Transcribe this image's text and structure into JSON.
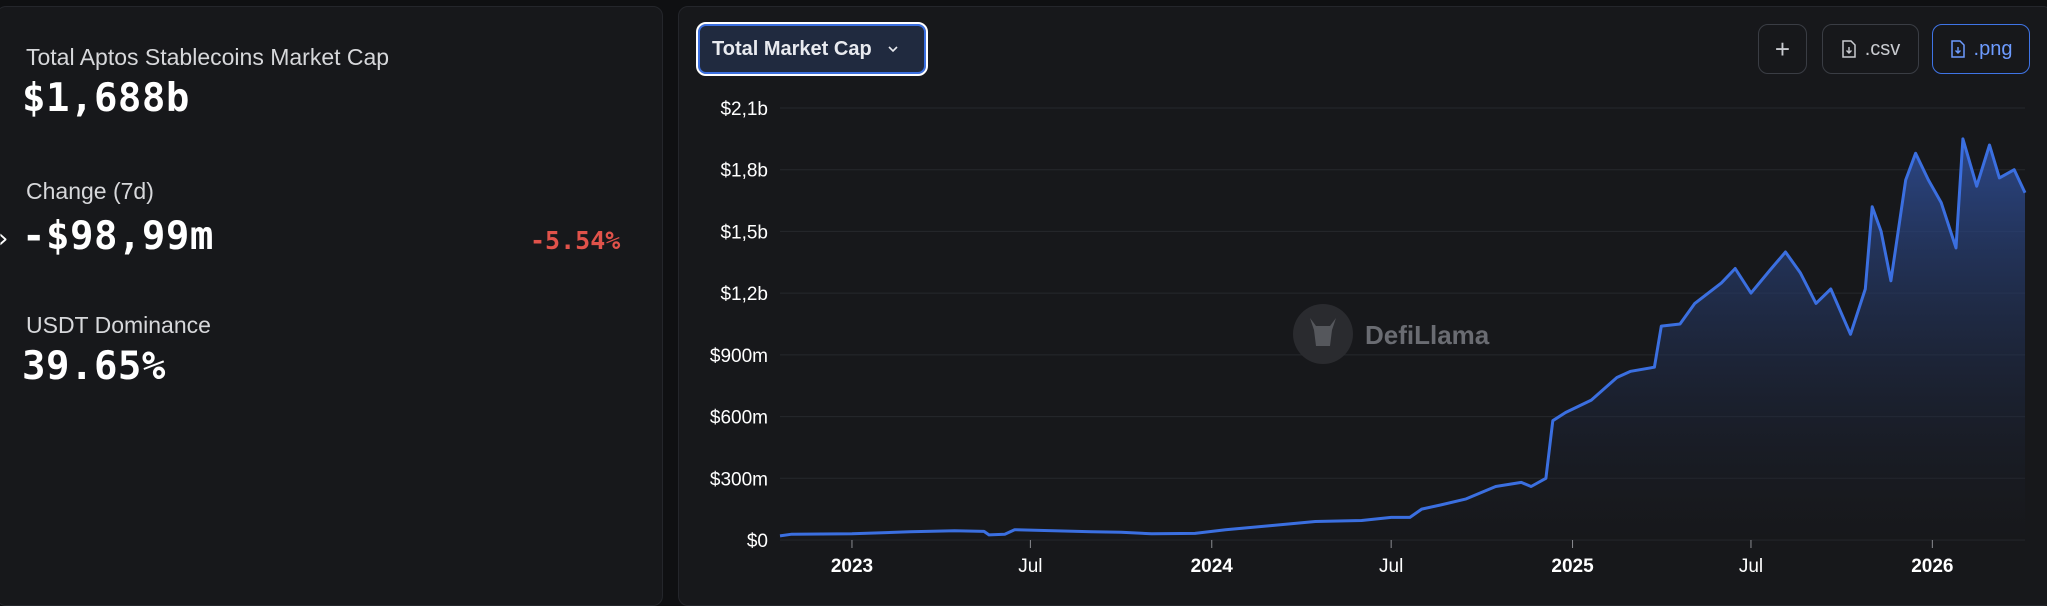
{
  "summary": {
    "market_cap_label": "Total Aptos Stablecoins Market Cap",
    "market_cap_value": "$1,688b",
    "change_label": "Change (7d)",
    "change_value": "-$98,99m",
    "change_pct": "-5.54%",
    "dominance_label": "USDT Dominance",
    "dominance_value": "39.65%"
  },
  "toolbar": {
    "metric_select": "Total Market Cap",
    "add_label": "+",
    "csv_label": ".csv",
    "png_label": ".png"
  },
  "watermark": "DefiLlama",
  "colors": {
    "line": "#3b6fe0",
    "accent": "#3f74e6",
    "negative": "#e0524a"
  },
  "chart_data": {
    "type": "area",
    "title": "",
    "xlabel": "",
    "ylabel": "",
    "y_unit": "USD",
    "ylim": [
      0,
      2100000000
    ],
    "y_ticks": [
      {
        "value": 0,
        "label": "$0"
      },
      {
        "value": 300000000,
        "label": "$300m"
      },
      {
        "value": 600000000,
        "label": "$600m"
      },
      {
        "value": 900000000,
        "label": "$900m"
      },
      {
        "value": 1200000000,
        "label": "$1,2b"
      },
      {
        "value": 1500000000,
        "label": "$1,5b"
      },
      {
        "value": 1800000000,
        "label": "$1,8b"
      },
      {
        "value": 2100000000,
        "label": "$2,1b"
      }
    ],
    "x_ticks": [
      {
        "date": "2023-01-01",
        "label": "2023",
        "bold": true
      },
      {
        "date": "2023-07-01",
        "label": "Jul",
        "bold": false
      },
      {
        "date": "2024-01-01",
        "label": "2024",
        "bold": true
      },
      {
        "date": "2024-07-01",
        "label": "Jul",
        "bold": false
      },
      {
        "date": "2025-01-01",
        "label": "2025",
        "bold": true
      },
      {
        "date": "2025-07-01",
        "label": "Jul",
        "bold": false
      },
      {
        "date": "2026-01-01",
        "label": "2026",
        "bold": true
      }
    ],
    "xlim": [
      "2022-10-20",
      "2026-04-05"
    ],
    "grid": true,
    "series": [
      {
        "points": [
          [
            "2022-10-20",
            20000000
          ],
          [
            "2022-11-01",
            28000000
          ],
          [
            "2023-01-01",
            30000000
          ],
          [
            "2023-03-01",
            40000000
          ],
          [
            "2023-04-15",
            45000000
          ],
          [
            "2023-05-15",
            42000000
          ],
          [
            "2023-05-20",
            25000000
          ],
          [
            "2023-06-05",
            28000000
          ],
          [
            "2023-06-15",
            50000000
          ],
          [
            "2023-09-01",
            40000000
          ],
          [
            "2023-10-01",
            38000000
          ],
          [
            "2023-11-01",
            30000000
          ],
          [
            "2023-12-15",
            32000000
          ],
          [
            "2024-01-15",
            50000000
          ],
          [
            "2024-03-01",
            70000000
          ],
          [
            "2024-04-15",
            90000000
          ],
          [
            "2024-06-01",
            95000000
          ],
          [
            "2024-07-01",
            110000000
          ],
          [
            "2024-07-20",
            110000000
          ],
          [
            "2024-08-01",
            150000000
          ],
          [
            "2024-08-20",
            170000000
          ],
          [
            "2024-09-15",
            200000000
          ],
          [
            "2024-10-15",
            260000000
          ],
          [
            "2024-11-10",
            280000000
          ],
          [
            "2024-11-20",
            260000000
          ],
          [
            "2024-12-05",
            300000000
          ],
          [
            "2024-12-12",
            580000000
          ],
          [
            "2024-12-25",
            620000000
          ],
          [
            "2025-01-20",
            680000000
          ],
          [
            "2025-02-15",
            790000000
          ],
          [
            "2025-03-01",
            820000000
          ],
          [
            "2025-03-25",
            840000000
          ],
          [
            "2025-04-01",
            1040000000
          ],
          [
            "2025-04-20",
            1050000000
          ],
          [
            "2025-05-05",
            1150000000
          ],
          [
            "2025-06-01",
            1250000000
          ],
          [
            "2025-06-15",
            1320000000
          ],
          [
            "2025-07-01",
            1200000000
          ],
          [
            "2025-07-20",
            1310000000
          ],
          [
            "2025-08-05",
            1400000000
          ],
          [
            "2025-08-20",
            1300000000
          ],
          [
            "2025-09-05",
            1150000000
          ],
          [
            "2025-09-20",
            1220000000
          ],
          [
            "2025-10-10",
            1000000000
          ],
          [
            "2025-10-25",
            1220000000
          ],
          [
            "2025-11-01",
            1620000000
          ],
          [
            "2025-11-10",
            1500000000
          ],
          [
            "2025-11-20",
            1260000000
          ],
          [
            "2025-12-05",
            1750000000
          ],
          [
            "2025-12-15",
            1880000000
          ],
          [
            "2025-12-28",
            1750000000
          ],
          [
            "2026-01-10",
            1640000000
          ],
          [
            "2026-01-25",
            1420000000
          ],
          [
            "2026-02-01",
            1950000000
          ],
          [
            "2026-02-15",
            1720000000
          ],
          [
            "2026-02-28",
            1920000000
          ],
          [
            "2026-03-10",
            1760000000
          ],
          [
            "2026-03-25",
            1800000000
          ],
          [
            "2026-04-05",
            1688000000
          ]
        ]
      }
    ]
  }
}
